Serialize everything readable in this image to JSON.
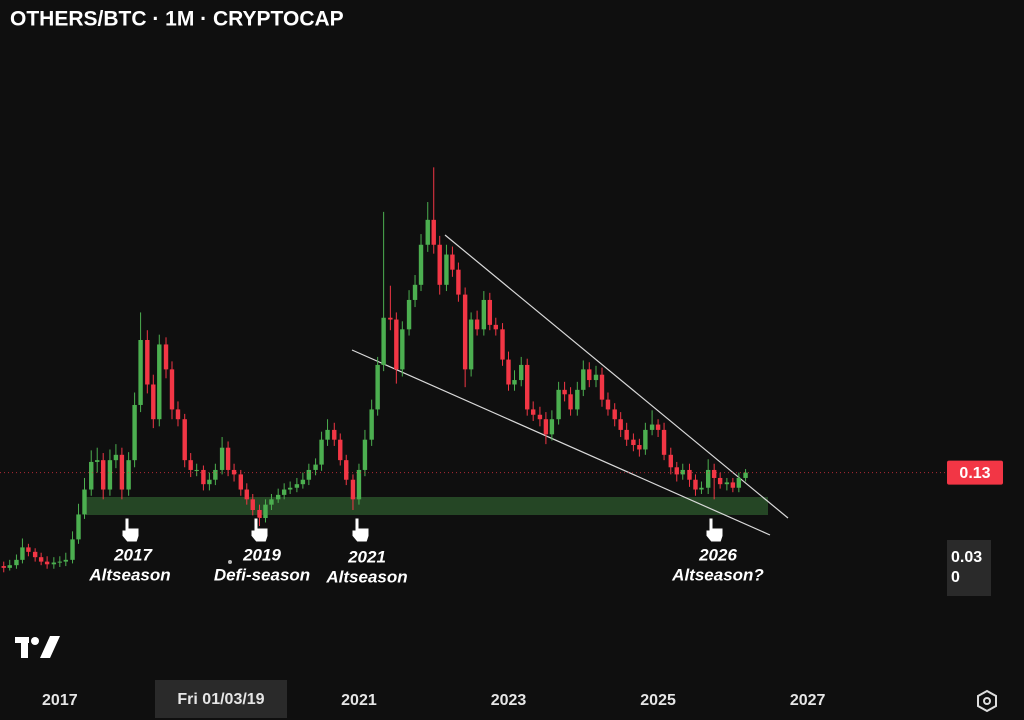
{
  "chart_data": {
    "type": "candlestick",
    "title": "OTHERS/BTC · 1M · CRYPTOCAP",
    "up_color": "#4caf50",
    "down_color": "#f23645",
    "xlim": [
      2016.2,
      2028.77
    ],
    "xticks": [
      2017,
      2021,
      2023,
      2025,
      2027
    ],
    "ylim": [
      -0.103,
      0.661
    ],
    "last_price": 0.13,
    "crosshair_price": {
      "value": 0.03,
      "label": "0.030"
    },
    "crosshair_date": "Fri 01/03/19",
    "annotations": [
      [
        "2017",
        "Altseason"
      ],
      [
        "2019",
        "Defi-season"
      ],
      [
        "2021",
        "Altseason"
      ],
      [
        "2026",
        "Altseason?"
      ]
    ],
    "x": [
      2016.25,
      2016.33,
      2016.42,
      2016.5,
      2016.58,
      2016.67,
      2016.75,
      2016.83,
      2016.92,
      2017,
      2017.08,
      2017.17,
      2017.25,
      2017.33,
      2017.42,
      2017.5,
      2017.58,
      2017.67,
      2017.75,
      2017.83,
      2017.92,
      2018,
      2018.08,
      2018.17,
      2018.25,
      2018.33,
      2018.42,
      2018.5,
      2018.58,
      2018.67,
      2018.75,
      2018.83,
      2018.92,
      2019,
      2019.08,
      2019.17,
      2019.25,
      2019.33,
      2019.42,
      2019.5,
      2019.58,
      2019.67,
      2019.75,
      2019.83,
      2019.92,
      2020,
      2020.08,
      2020.17,
      2020.25,
      2020.33,
      2020.42,
      2020.5,
      2020.58,
      2020.67,
      2020.75,
      2020.83,
      2020.92,
      2021,
      2021.08,
      2021.17,
      2021.25,
      2021.33,
      2021.42,
      2021.5,
      2021.58,
      2021.67,
      2021.75,
      2021.83,
      2021.92,
      2022,
      2022.08,
      2022.17,
      2022.25,
      2022.33,
      2022.42,
      2022.5,
      2022.58,
      2022.67,
      2022.75,
      2022.83,
      2022.92,
      2023,
      2023.08,
      2023.17,
      2023.25,
      2023.33,
      2023.42,
      2023.5,
      2023.58,
      2023.67,
      2023.75,
      2023.83,
      2023.92,
      2024,
      2024.08,
      2024.17,
      2024.25,
      2024.33,
      2024.42,
      2024.5,
      2024.58,
      2024.67,
      2024.75,
      2024.83,
      2024.92,
      2025,
      2025.08,
      2025.17,
      2025.25,
      2025.33,
      2025.42,
      2025.5,
      2025.58,
      2025.67,
      2025.75,
      2025.83,
      2025.92,
      2026,
      2026.08,
      2026.17
    ],
    "candles": [
      [
        0.025,
        0.03,
        0.018,
        0.023
      ],
      [
        0.023,
        0.032,
        0.02,
        0.026
      ],
      [
        0.026,
        0.038,
        0.022,
        0.032
      ],
      [
        0.032,
        0.056,
        0.028,
        0.046
      ],
      [
        0.046,
        0.05,
        0.036,
        0.041
      ],
      [
        0.041,
        0.045,
        0.03,
        0.035
      ],
      [
        0.035,
        0.04,
        0.026,
        0.03
      ],
      [
        0.03,
        0.036,
        0.022,
        0.027
      ],
      [
        0.027,
        0.035,
        0.022,
        0.029
      ],
      [
        0.029,
        0.036,
        0.024,
        0.03
      ],
      [
        0.03,
        0.04,
        0.025,
        0.032
      ],
      [
        0.032,
        0.064,
        0.028,
        0.055
      ],
      [
        0.055,
        0.095,
        0.05,
        0.083
      ],
      [
        0.083,
        0.124,
        0.078,
        0.111
      ],
      [
        0.111,
        0.155,
        0.104,
        0.142
      ],
      [
        0.142,
        0.158,
        0.13,
        0.144
      ],
      [
        0.144,
        0.152,
        0.1,
        0.111
      ],
      [
        0.111,
        0.156,
        0.104,
        0.144
      ],
      [
        0.144,
        0.162,
        0.135,
        0.15
      ],
      [
        0.15,
        0.158,
        0.1,
        0.111
      ],
      [
        0.111,
        0.153,
        0.104,
        0.144
      ],
      [
        0.144,
        0.22,
        0.136,
        0.206
      ],
      [
        0.206,
        0.31,
        0.198,
        0.279
      ],
      [
        0.279,
        0.29,
        0.219,
        0.229
      ],
      [
        0.229,
        0.24,
        0.18,
        0.19
      ],
      [
        0.19,
        0.285,
        0.182,
        0.274
      ],
      [
        0.274,
        0.282,
        0.236,
        0.246
      ],
      [
        0.246,
        0.255,
        0.19,
        0.201
      ],
      [
        0.201,
        0.21,
        0.182,
        0.19
      ],
      [
        0.19,
        0.196,
        0.136,
        0.144
      ],
      [
        0.144,
        0.152,
        0.125,
        0.133
      ],
      [
        0.133,
        0.14,
        0.126,
        0.133
      ],
      [
        0.133,
        0.138,
        0.11,
        0.117
      ],
      [
        0.117,
        0.13,
        0.11,
        0.122
      ],
      [
        0.122,
        0.14,
        0.116,
        0.133
      ],
      [
        0.133,
        0.17,
        0.128,
        0.158
      ],
      [
        0.158,
        0.165,
        0.126,
        0.133
      ],
      [
        0.133,
        0.14,
        0.12,
        0.128
      ],
      [
        0.128,
        0.133,
        0.104,
        0.111
      ],
      [
        0.111,
        0.118,
        0.094,
        0.1
      ],
      [
        0.1,
        0.106,
        0.082,
        0.088
      ],
      [
        0.088,
        0.094,
        0.07,
        0.079
      ],
      [
        0.079,
        0.1,
        0.074,
        0.094
      ],
      [
        0.094,
        0.106,
        0.088,
        0.1
      ],
      [
        0.1,
        0.112,
        0.096,
        0.105
      ],
      [
        0.105,
        0.118,
        0.1,
        0.111
      ],
      [
        0.111,
        0.12,
        0.106,
        0.113
      ],
      [
        0.113,
        0.124,
        0.108,
        0.117
      ],
      [
        0.117,
        0.13,
        0.112,
        0.122
      ],
      [
        0.122,
        0.14,
        0.116,
        0.133
      ],
      [
        0.133,
        0.146,
        0.127,
        0.139
      ],
      [
        0.139,
        0.176,
        0.132,
        0.167
      ],
      [
        0.167,
        0.19,
        0.16,
        0.178
      ],
      [
        0.178,
        0.186,
        0.16,
        0.167
      ],
      [
        0.167,
        0.174,
        0.138,
        0.144
      ],
      [
        0.144,
        0.15,
        0.116,
        0.122
      ],
      [
        0.122,
        0.128,
        0.088,
        0.1
      ],
      [
        0.1,
        0.14,
        0.094,
        0.133
      ],
      [
        0.133,
        0.178,
        0.126,
        0.167
      ],
      [
        0.167,
        0.212,
        0.16,
        0.201
      ],
      [
        0.201,
        0.26,
        0.194,
        0.251
      ],
      [
        0.251,
        0.423,
        0.244,
        0.304
      ],
      [
        0.304,
        0.34,
        0.29,
        0.302
      ],
      [
        0.302,
        0.31,
        0.23,
        0.246
      ],
      [
        0.246,
        0.3,
        0.238,
        0.291
      ],
      [
        0.291,
        0.335,
        0.284,
        0.324
      ],
      [
        0.324,
        0.352,
        0.316,
        0.341
      ],
      [
        0.341,
        0.398,
        0.334,
        0.386
      ],
      [
        0.386,
        0.434,
        0.378,
        0.414
      ],
      [
        0.414,
        0.473,
        0.376,
        0.386
      ],
      [
        0.386,
        0.396,
        0.33,
        0.341
      ],
      [
        0.341,
        0.386,
        0.334,
        0.375
      ],
      [
        0.375,
        0.384,
        0.35,
        0.358
      ],
      [
        0.358,
        0.366,
        0.322,
        0.33
      ],
      [
        0.33,
        0.338,
        0.226,
        0.246
      ],
      [
        0.246,
        0.31,
        0.238,
        0.302
      ],
      [
        0.302,
        0.312,
        0.284,
        0.291
      ],
      [
        0.291,
        0.334,
        0.284,
        0.324
      ],
      [
        0.324,
        0.332,
        0.29,
        0.296
      ],
      [
        0.296,
        0.304,
        0.284,
        0.291
      ],
      [
        0.291,
        0.298,
        0.25,
        0.257
      ],
      [
        0.257,
        0.266,
        0.222,
        0.229
      ],
      [
        0.229,
        0.245,
        0.222,
        0.234
      ],
      [
        0.234,
        0.26,
        0.227,
        0.251
      ],
      [
        0.251,
        0.258,
        0.194,
        0.201
      ],
      [
        0.201,
        0.21,
        0.188,
        0.195
      ],
      [
        0.195,
        0.204,
        0.182,
        0.19
      ],
      [
        0.19,
        0.198,
        0.162,
        0.173
      ],
      [
        0.173,
        0.2,
        0.166,
        0.19
      ],
      [
        0.19,
        0.232,
        0.184,
        0.223
      ],
      [
        0.223,
        0.232,
        0.21,
        0.218
      ],
      [
        0.218,
        0.226,
        0.194,
        0.201
      ],
      [
        0.201,
        0.232,
        0.194,
        0.223
      ],
      [
        0.223,
        0.256,
        0.216,
        0.246
      ],
      [
        0.246,
        0.254,
        0.226,
        0.234
      ],
      [
        0.234,
        0.25,
        0.226,
        0.24
      ],
      [
        0.24,
        0.248,
        0.204,
        0.212
      ],
      [
        0.212,
        0.22,
        0.194,
        0.201
      ],
      [
        0.201,
        0.208,
        0.182,
        0.19
      ],
      [
        0.19,
        0.198,
        0.17,
        0.178
      ],
      [
        0.178,
        0.186,
        0.16,
        0.167
      ],
      [
        0.167,
        0.174,
        0.154,
        0.161
      ],
      [
        0.161,
        0.168,
        0.148,
        0.156
      ],
      [
        0.156,
        0.186,
        0.15,
        0.178
      ],
      [
        0.178,
        0.2,
        0.172,
        0.184
      ],
      [
        0.184,
        0.19,
        0.17,
        0.178
      ],
      [
        0.178,
        0.186,
        0.144,
        0.15
      ],
      [
        0.15,
        0.158,
        0.128,
        0.136
      ],
      [
        0.136,
        0.142,
        0.12,
        0.128
      ],
      [
        0.128,
        0.14,
        0.122,
        0.133
      ],
      [
        0.133,
        0.14,
        0.114,
        0.122
      ],
      [
        0.122,
        0.128,
        0.104,
        0.111
      ],
      [
        0.111,
        0.12,
        0.106,
        0.113
      ],
      [
        0.113,
        0.145,
        0.106,
        0.133
      ],
      [
        0.133,
        0.14,
        0.1,
        0.124
      ],
      [
        0.124,
        0.13,
        0.112,
        0.117
      ],
      [
        0.117,
        0.124,
        0.11,
        0.119
      ],
      [
        0.119,
        0.124,
        0.108,
        0.113
      ],
      [
        0.113,
        0.13,
        0.108,
        0.124
      ],
      [
        0.124,
        0.134,
        0.12,
        0.13
      ]
    ]
  }
}
